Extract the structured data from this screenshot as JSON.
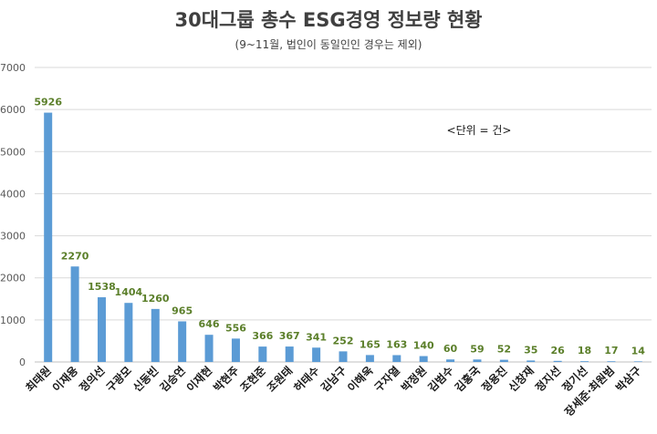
{
  "chart_data": {
    "type": "bar",
    "title": "30대그룹 총수 ESG경영 정보량 현황",
    "subtitle": "(9~11월, 법인이 동일인인 경우는 제외)",
    "unit_note": "<단위 = 건>",
    "categories": [
      "최태원",
      "이재용",
      "정의선",
      "구광모",
      "신동빈",
      "김승연",
      "이재현",
      "박현주",
      "조현준",
      "조원태",
      "허태수",
      "김남구",
      "이해욱",
      "구자열",
      "박정원",
      "김범수",
      "김홍국",
      "정용진",
      "신창재",
      "정지선",
      "정기선",
      "장세준·최원범",
      "박삼구"
    ],
    "values": [
      5926,
      2270,
      1538,
      1404,
      1260,
      965,
      646,
      556,
      366,
      367,
      341,
      252,
      165,
      163,
      140,
      60,
      59,
      52,
      35,
      26,
      18,
      17,
      14
    ],
    "ylim": [
      0,
      7000
    ],
    "yticks": [
      0,
      1000,
      2000,
      3000,
      4000,
      5000,
      6000,
      7000
    ],
    "grid": true,
    "colors": {
      "bar": "#5b9bd5",
      "data_label": "#5b7f2a",
      "grid": "#d9d9d9"
    }
  }
}
